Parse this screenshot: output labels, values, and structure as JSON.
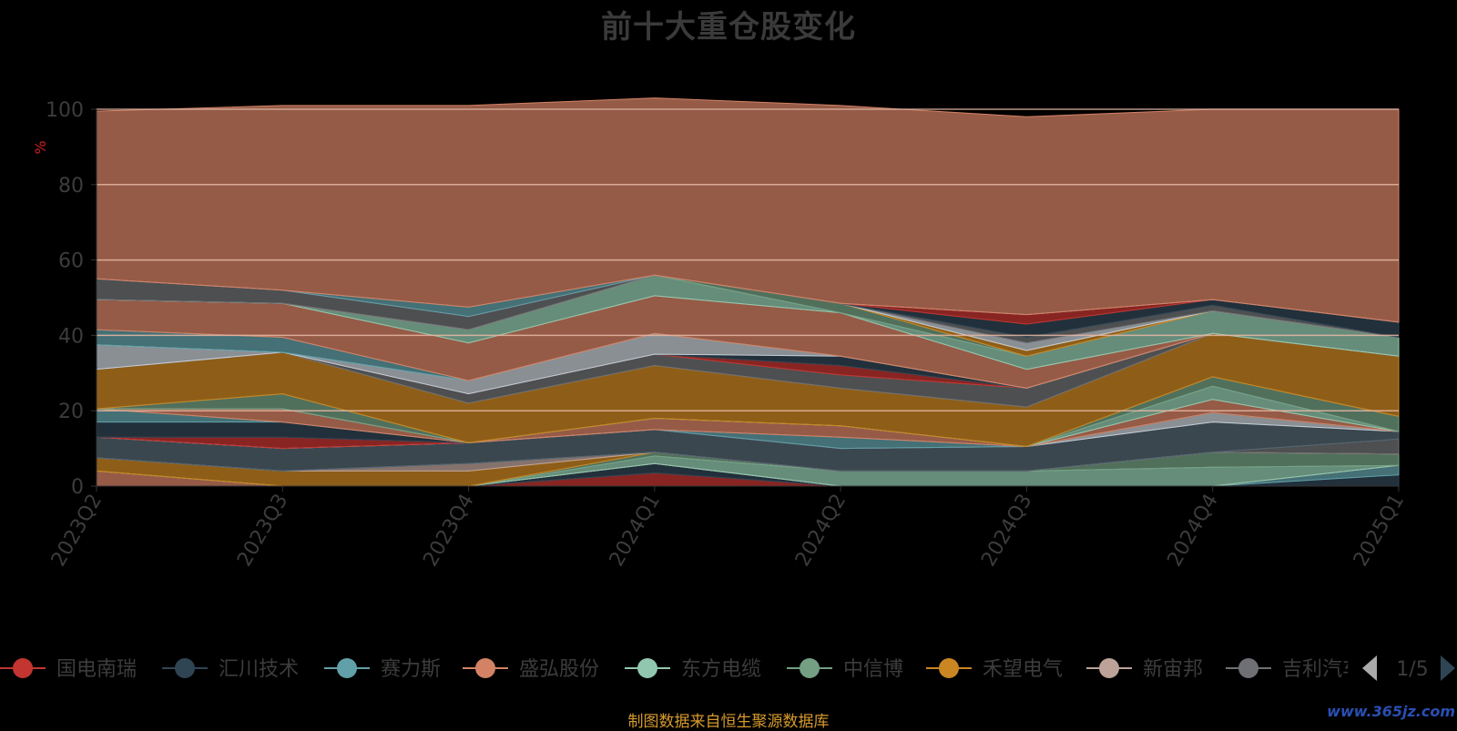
{
  "chart_data": {
    "type": "area",
    "title": "前十大重仓股变化",
    "ylabel": "%",
    "ylim": [
      0,
      100
    ],
    "yticks": [
      0,
      20,
      40,
      60,
      80,
      100
    ],
    "categories": [
      "2023Q2",
      "2023Q3",
      "2023Q4",
      "2024Q1",
      "2024Q2",
      "2024Q3",
      "2024Q4",
      "2025Q1"
    ],
    "series": [
      {
        "name": "国电南瑞",
        "color": "#c23531",
        "values": [
          0,
          0,
          0,
          3.5,
          0,
          0,
          0,
          0
        ]
      },
      {
        "name": "汇川技术",
        "color": "#2f4554",
        "values": [
          0,
          0,
          0,
          2.5,
          0,
          0,
          0,
          3
        ]
      },
      {
        "name": "赛力斯",
        "color": "#61a0a8",
        "values": [
          0,
          0,
          0,
          0,
          0,
          0,
          0,
          2.5
        ]
      },
      {
        "name": "盛弘股份",
        "color": "#d48265",
        "values": [
          4,
          0,
          0,
          0,
          0,
          0,
          0,
          0
        ]
      },
      {
        "name": "东方电缆",
        "color": "#91c7ae",
        "values": [
          0,
          0,
          0,
          2,
          4,
          4,
          5,
          0
        ]
      },
      {
        "name": "中信博",
        "color": "#749f83",
        "values": [
          0,
          0,
          0,
          1,
          0,
          0,
          4,
          3
        ]
      },
      {
        "name": "禾望电气",
        "color": "#ca8622",
        "values": [
          3.5,
          4,
          4,
          0,
          0,
          0,
          0,
          0
        ]
      },
      {
        "name": "新宙邦",
        "color": "#bda29a",
        "values": [
          0,
          0,
          2,
          0,
          0,
          0,
          0,
          0
        ]
      },
      {
        "name": "吉利汽车",
        "color": "#6e7074",
        "values": [
          0,
          0,
          0,
          0,
          0,
          0,
          0,
          4
        ]
      },
      {
        "name": "",
        "color": "#546570",
        "values": [
          5.5,
          6,
          5.5,
          6,
          6,
          6.5,
          8,
          2
        ]
      },
      {
        "name": "",
        "color": "#c4ccd3",
        "values": [
          0,
          0,
          0,
          0,
          0,
          0,
          2.5,
          0
        ]
      },
      {
        "name": "",
        "color": "#c23531",
        "values": [
          0,
          3,
          0,
          0,
          0,
          0,
          0,
          0
        ]
      },
      {
        "name": "",
        "color": "#2f4554",
        "values": [
          4,
          4,
          0,
          0,
          0,
          0,
          0,
          0
        ]
      },
      {
        "name": "",
        "color": "#61a0a8",
        "values": [
          3.5,
          0,
          0,
          0,
          3,
          0,
          0,
          0
        ]
      },
      {
        "name": "",
        "color": "#d48265",
        "values": [
          0,
          3.5,
          0,
          3,
          3,
          0,
          3.5,
          0
        ]
      },
      {
        "name": "",
        "color": "#91c7ae",
        "values": [
          0,
          0,
          0,
          0,
          0,
          0,
          3.5,
          0
        ]
      },
      {
        "name": "",
        "color": "#749f83",
        "values": [
          0,
          4,
          0,
          0,
          0,
          0,
          2.5,
          4
        ]
      },
      {
        "name": "",
        "color": "#ca8622",
        "values": [
          10.5,
          11,
          10.5,
          14,
          10,
          10.5,
          11.5,
          16
        ]
      },
      {
        "name": "",
        "color": "#6e7074",
        "values": [
          0,
          0,
          2.5,
          3,
          3.5,
          5,
          0,
          0
        ]
      },
      {
        "name": "",
        "color": "#c23531",
        "values": [
          0,
          0,
          0,
          0,
          2.5,
          0,
          0,
          0
        ]
      },
      {
        "name": "",
        "color": "#2f4554",
        "values": [
          0,
          0,
          0,
          0,
          2.5,
          0,
          0,
          0
        ]
      },
      {
        "name": "",
        "color": "#c4ccd3",
        "values": [
          6.5,
          0,
          3.5,
          5.5,
          0,
          0,
          0,
          0
        ]
      },
      {
        "name": "",
        "color": "#61a0a8",
        "values": [
          4,
          4,
          0,
          0,
          0,
          0,
          0,
          0
        ]
      },
      {
        "name": "",
        "color": "#d48265",
        "values": [
          8,
          9,
          10,
          10,
          11.5,
          5,
          0,
          0
        ]
      },
      {
        "name": "",
        "color": "#91c7ae",
        "values": [
          0,
          0,
          3.5,
          5.5,
          0,
          3.5,
          6,
          5
        ]
      },
      {
        "name": "",
        "color": "#749f83",
        "values": [
          0,
          0,
          0,
          0,
          2.5,
          0,
          0,
          0
        ]
      },
      {
        "name": "",
        "color": "#ca8622",
        "values": [
          0,
          0,
          0,
          0,
          0,
          1.5,
          0,
          0
        ]
      },
      {
        "name": "",
        "color": "#c4ccd3",
        "values": [
          0,
          0,
          0,
          0,
          0,
          2,
          0,
          0
        ]
      },
      {
        "name": "",
        "color": "#6e7074",
        "values": [
          5.5,
          3.5,
          3.5,
          0,
          0,
          1.5,
          1.5,
          0
        ]
      },
      {
        "name": "",
        "color": "#2f4554",
        "values": [
          0,
          0,
          0,
          0,
          0,
          3.5,
          1.5,
          4
        ]
      },
      {
        "name": "",
        "color": "#c23531",
        "values": [
          0,
          0,
          0,
          0,
          0,
          2.5,
          0,
          0
        ]
      },
      {
        "name": "",
        "color": "#61a0a8",
        "values": [
          0,
          0,
          2.5,
          0,
          0,
          0,
          0,
          0
        ]
      },
      {
        "name": "",
        "color": "#d48265",
        "values": [
          44.5,
          49,
          53.5,
          47,
          52.5,
          52.5,
          50.5,
          56.5
        ]
      }
    ]
  },
  "legend": {
    "page": "1/5",
    "items": [
      "国电南瑞",
      "汇川技术",
      "赛力斯",
      "盛弘股份",
      "东方电缆",
      "中信博",
      "禾望电气",
      "新宙邦",
      "吉利汽车"
    ]
  },
  "footer": {
    "source": "制图数据来自恒生聚源数据库",
    "watermark": "www.365jz.com"
  }
}
